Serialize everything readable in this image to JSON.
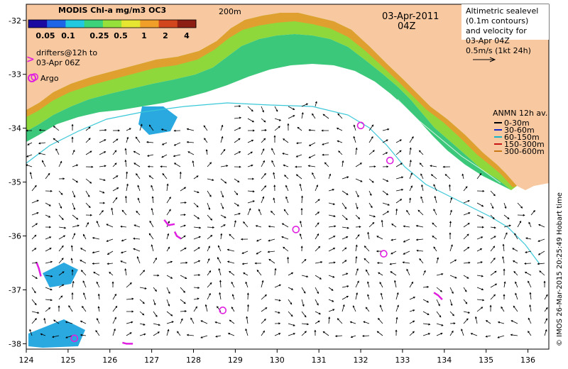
{
  "title": {
    "date": "03-Apr-2011",
    "time": "04Z"
  },
  "colorbar": {
    "title": "MODIS Chl-a mg/m3 OC3",
    "ticks": [
      "0.05",
      "0.1",
      "0.25",
      "0.5",
      "1",
      "2",
      "4"
    ],
    "colors": [
      "#1a0aa0",
      "#1e64e6",
      "#22c8e0",
      "#3cd27a",
      "#96e03c",
      "#e6e632",
      "#f0a028",
      "#d2461e",
      "#8c1e14"
    ]
  },
  "contour_label": "200m",
  "legend_left": {
    "drifters": "drifters@12h to",
    "drifters_date": "03-Apr 06Z",
    "argo": "Argo"
  },
  "legend_right": {
    "lines": [
      "Altimetric sealevel",
      "(0.1m contours)",
      "and velocity for",
      "03-Apr 04Z",
      "0.5m/s (1kt 24h)"
    ]
  },
  "anmn": {
    "title": "ANMN 12h av.",
    "items": [
      {
        "label": "0-30m",
        "color": "#000000"
      },
      {
        "label": "30-60m",
        "color": "#1428c8"
      },
      {
        "label": "60-150m",
        "color": "#14b4c8"
      },
      {
        "label": "150-300m",
        "color": "#c81414"
      },
      {
        "label": "300-600m",
        "color": "#c87814"
      }
    ]
  },
  "credit": "© IMOS 26-Mar-2015 20:25:49 Hobart time",
  "axes": {
    "x_ticks": [
      "124",
      "125",
      "126",
      "127",
      "128",
      "129",
      "130",
      "131",
      "132",
      "133",
      "134",
      "135",
      "136"
    ],
    "y_ticks": [
      "-32",
      "-33",
      "-34",
      "-35",
      "-36",
      "-37",
      "-38"
    ],
    "xlim": [
      124,
      136.5
    ],
    "ylim": [
      -38.1,
      -31.7
    ]
  },
  "colors": {
    "land": "#f8c8a0",
    "ocean": "#ffffff",
    "isobath": "#3ac8d8",
    "arrows": "#000000",
    "argo": "#e020e0"
  },
  "argo_floats": [
    {
      "lon": 124.2,
      "lat": -33.05
    },
    {
      "lon": 132.0,
      "lat": -33.95
    },
    {
      "lon": 132.7,
      "lat": -34.6
    },
    {
      "lon": 130.45,
      "lat": -35.88
    },
    {
      "lon": 132.55,
      "lat": -36.33
    },
    {
      "lon": 128.7,
      "lat": -37.38
    },
    {
      "lon": 125.15,
      "lat": -37.9
    }
  ],
  "drifter_tracks": [
    [
      [
        127.3,
        -35.7
      ],
      [
        127.4,
        -35.8
      ],
      [
        127.55,
        -35.78
      ]
    ],
    [
      [
        127.55,
        -35.92
      ],
      [
        127.6,
        -36.0
      ],
      [
        127.7,
        -36.05
      ]
    ],
    [
      [
        124.25,
        -36.5
      ],
      [
        124.3,
        -36.6
      ],
      [
        124.35,
        -36.75
      ]
    ],
    [
      [
        133.75,
        -37.05
      ],
      [
        133.85,
        -37.1
      ],
      [
        133.95,
        -37.18
      ]
    ],
    [
      [
        126.3,
        -37.98
      ],
      [
        126.4,
        -38.0
      ],
      [
        126.55,
        -38.0
      ]
    ]
  ]
}
